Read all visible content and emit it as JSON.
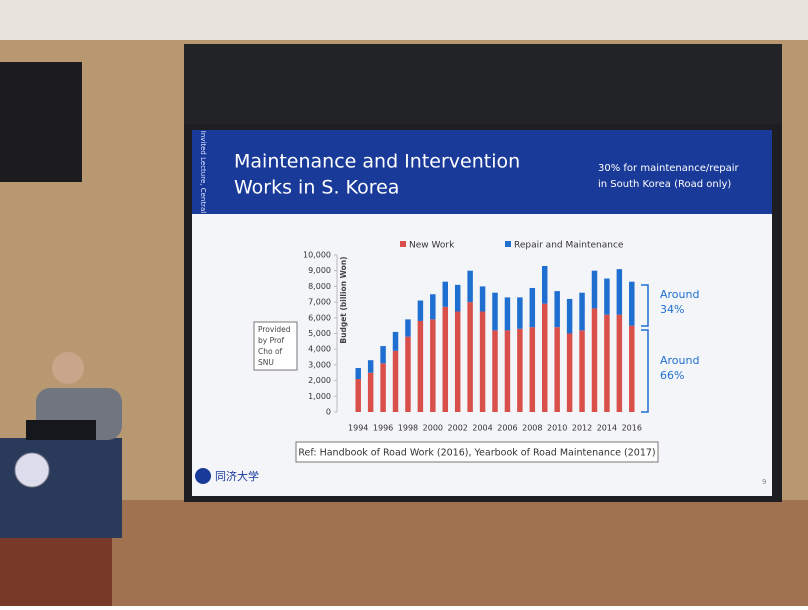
{
  "slide": {
    "title_lines": [
      "Maintenance and Intervention",
      "Works in S. Korea"
    ],
    "note_lines": [
      "30% for maintenance/repair",
      "in South Korea (Road only)"
    ],
    "side_label": "Invited Lecture, Central",
    "provided_lines": [
      "Provided",
      "by Prof",
      "Cho of",
      "SNU"
    ],
    "annotations": [
      {
        "lines": [
          "Around",
          "34%"
        ]
      },
      {
        "lines": [
          "Around",
          "66%"
        ]
      }
    ],
    "reference": "Ref: Handbook of Road Work (2016), Yearbook of Road Maintenance (2017)",
    "logo_text": "同济大学",
    "page_number": "9"
  },
  "chart_data": {
    "type": "stacked_bar",
    "ylabel": "Budget (billion Won)",
    "categories": [
      "1994",
      null,
      "1996",
      null,
      "1998",
      null,
      "2000",
      null,
      "2002",
      null,
      "2004",
      null,
      "2006",
      null,
      "2008",
      null,
      "2010",
      null,
      "2012",
      null,
      "2014",
      null,
      "2016"
    ],
    "series": [
      {
        "name": "New Work",
        "color": "#d9504a",
        "values": [
          2100,
          2500,
          3100,
          3900,
          4800,
          5800,
          5900,
          6700,
          6400,
          7000,
          6400,
          5200,
          5200,
          5300,
          5400,
          6900,
          5400,
          5000,
          5200,
          6600,
          6200,
          6200,
          5500
        ]
      },
      {
        "name": "Repair and Maintenance",
        "color": "#1f6fd1",
        "values": [
          700,
          800,
          1100,
          1200,
          1100,
          1300,
          1600,
          1600,
          1700,
          2000,
          1600,
          2400,
          2100,
          2000,
          2500,
          2400,
          2300,
          2200,
          2400,
          2400,
          2300,
          2900,
          2800
        ]
      }
    ],
    "ylim": [
      0,
      10000
    ],
    "yticks": [
      0,
      {
        "value": 1000,
        "label": "1,000"
      },
      {
        "value": 2000,
        "label": "2,000"
      },
      {
        "value": 3000,
        "label": "3,000"
      },
      {
        "value": 4000,
        "label": "4,000"
      },
      {
        "value": 5000,
        "label": "5,000"
      },
      {
        "value": 6000,
        "label": "6,000"
      },
      {
        "value": 7000,
        "label": "7,000"
      },
      {
        "value": 8000,
        "label": "8,000"
      },
      {
        "value": 9000,
        "label": "9,000"
      },
      {
        "value": 10000,
        "label": "10,000"
      }
    ],
    "legend": "top"
  }
}
